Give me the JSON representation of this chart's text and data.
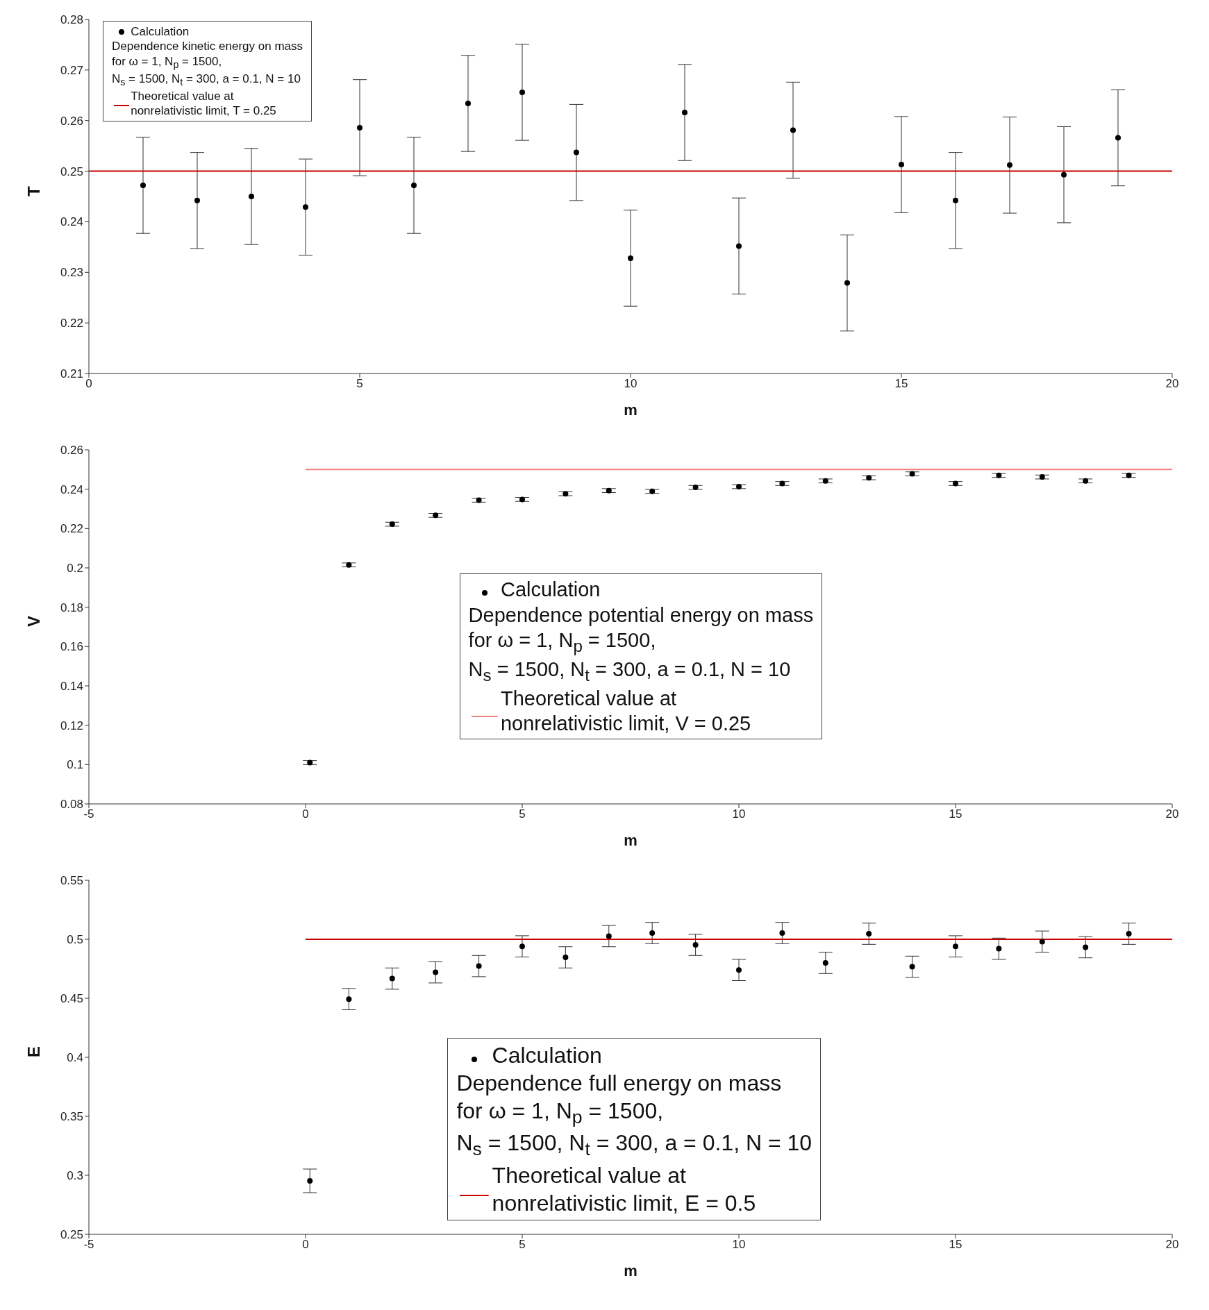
{
  "chart_data": [
    {
      "type": "scatter",
      "xlabel": "m",
      "ylabel": "T",
      "xlim": [
        0,
        20
      ],
      "xticks": [
        0,
        5,
        10,
        15,
        20
      ],
      "ylim": [
        0.21,
        0.28
      ],
      "yticks": [
        0.21,
        0.22,
        0.23,
        0.24,
        0.25,
        0.26,
        0.27,
        0.28
      ],
      "legend": "top left",
      "annotations": [
        "Dependence kinetic energy on mass",
        "for ω = 1, N$_{p}$ = 1500,",
        "N$_{s}$ = 1500, N$_{t}$ = 300, a = 0.1, N = 10"
      ],
      "series": [
        {
          "name": "Calculation",
          "color": "#000000",
          "marker": "circle",
          "x": [
            1,
            2,
            3,
            4,
            5,
            6,
            7,
            8,
            9,
            10,
            11,
            12,
            13,
            14,
            15,
            16,
            17,
            18,
            19
          ],
          "values": [
            0.2472,
            0.2442,
            0.245,
            0.2429,
            0.2586,
            0.2472,
            0.2634,
            0.2656,
            0.2537,
            0.2328,
            0.2616,
            0.2352,
            0.2581,
            0.2279,
            0.2513,
            0.2442,
            0.2512,
            0.2493,
            0.2566
          ],
          "errors": [
            0.0095,
            0.0095,
            0.0095,
            0.0095,
            0.0095,
            0.0095,
            0.0095,
            0.0095,
            0.0095,
            0.0095,
            0.0095,
            0.0095,
            0.0095,
            0.0095,
            0.0095,
            0.0095,
            0.0095,
            0.0095,
            0.0095
          ]
        },
        {
          "name": "Theoretical value at nonrelativistic limit, T = 0.25",
          "type": "line",
          "color": "#cc0000",
          "x": [
            0,
            20
          ],
          "values": [
            0.25,
            0.25
          ]
        }
      ]
    },
    {
      "type": "scatter",
      "xlabel": "m",
      "ylabel": "V",
      "xlim": [
        -5,
        20
      ],
      "xticks": [
        -5,
        0,
        5,
        10,
        15,
        20
      ],
      "ylim": [
        0.08,
        0.26
      ],
      "yticks": [
        0.08,
        0.1,
        0.12,
        0.14,
        0.16,
        0.18,
        0.2,
        0.22,
        0.24,
        0.26
      ],
      "legend": "center",
      "annotations": [
        "Dependence potential energy on mass",
        "for ω = 1, N$_{p}$ = 1500,",
        "N$_{s}$ = 1500, N$_{t}$ = 300, a = 0.1, N = 10"
      ],
      "series": [
        {
          "name": "Calculation",
          "color": "#000000",
          "marker": "circle",
          "x": [
            0.1,
            1,
            2,
            3,
            4,
            5,
            6,
            7,
            8,
            9,
            10,
            11,
            12,
            13,
            14,
            15,
            16,
            17,
            18,
            19
          ],
          "values": [
            0.101,
            0.2015,
            0.2222,
            0.2267,
            0.2344,
            0.2348,
            0.2377,
            0.2393,
            0.2389,
            0.2409,
            0.2413,
            0.2429,
            0.2442,
            0.2458,
            0.2478,
            0.2429,
            0.247,
            0.2462,
            0.2442,
            0.247
          ],
          "errors": [
            0.001,
            0.001,
            0.001,
            0.001,
            0.001,
            0.001,
            0.001,
            0.001,
            0.001,
            0.001,
            0.001,
            0.001,
            0.001,
            0.001,
            0.001,
            0.001,
            0.001,
            0.001,
            0.001,
            0.001
          ]
        },
        {
          "name": "Theoretical value at nonrelativistic limit, V = 0.25",
          "type": "line",
          "color": "#f08080",
          "x": [
            0,
            20
          ],
          "values": [
            0.25,
            0.25
          ]
        }
      ]
    },
    {
      "type": "scatter",
      "xlabel": "m",
      "ylabel": "E",
      "xlim": [
        -5,
        20
      ],
      "xticks": [
        -5,
        0,
        5,
        10,
        15,
        20
      ],
      "ylim": [
        0.25,
        0.55
      ],
      "yticks": [
        0.25,
        0.3,
        0.35,
        0.4,
        0.45,
        0.5,
        0.55
      ],
      "legend": "bottom",
      "annotations": [
        "Dependence full energy on mass",
        "for ω = 1, N$_{p}$ = 1500,",
        "N$_{s}$ = 1500, N$_{t}$ = 300, a = 0.1, N = 10"
      ],
      "series": [
        {
          "name": "Calculation",
          "color": "#000000",
          "marker": "circle",
          "x": [
            0.1,
            1,
            2,
            3,
            4,
            5,
            6,
            7,
            8,
            9,
            10,
            11,
            12,
            13,
            14,
            15,
            16,
            17,
            18,
            19
          ],
          "values": [
            0.2953,
            0.4493,
            0.4667,
            0.472,
            0.4773,
            0.494,
            0.4847,
            0.5027,
            0.5053,
            0.4953,
            0.474,
            0.5053,
            0.48,
            0.5047,
            0.4767,
            0.494,
            0.492,
            0.498,
            0.4933,
            0.5047
          ],
          "errors": [
            0.01,
            0.009,
            0.009,
            0.009,
            0.009,
            0.009,
            0.009,
            0.009,
            0.009,
            0.009,
            0.009,
            0.009,
            0.009,
            0.009,
            0.009,
            0.009,
            0.009,
            0.009,
            0.009,
            0.009
          ]
        },
        {
          "name": "Theoretical value at nonrelativistic limit, E = 0.5",
          "type": "line",
          "color": "#cc0000",
          "x": [
            0,
            20
          ],
          "values": [
            0.5,
            0.5
          ]
        }
      ]
    }
  ]
}
